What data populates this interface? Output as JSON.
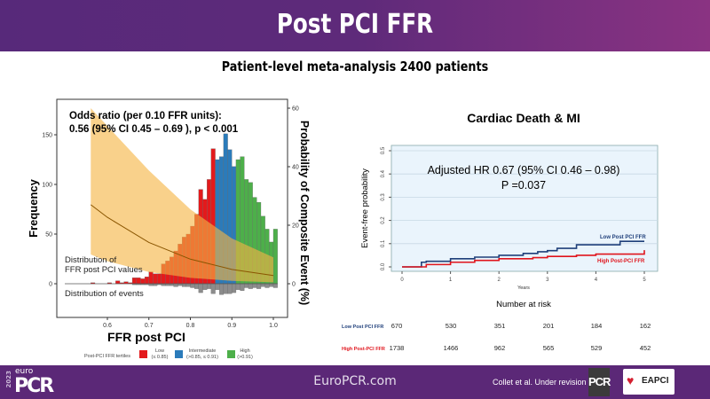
{
  "slide": {
    "title": "Post PCI FFR",
    "subtitle": "Patient-level meta-analysis 2400 patients"
  },
  "footer": {
    "logo_year": "2023",
    "logo_euro": "euro",
    "logo_pcr": "PCR",
    "site": "EuroPCR.com",
    "citation": "Collet et al. Under revision",
    "pcr_badge": "PCR",
    "eapci_badge": "EAPCI"
  },
  "colors": {
    "low": "#e31a1c",
    "intermediate": "#2b7bba",
    "high": "#4daf4a",
    "events": "#8c8c8c",
    "ci_band": "#f5b544",
    "curve": "#8a5500",
    "km_low": "#1f3f7a",
    "km_high": "#e0141c",
    "km_bg": "#eaf4fc",
    "header": "#5e2a7a"
  },
  "chart_data": [
    {
      "type": "bar",
      "xlabel": "FFR post PCI",
      "ylabel": "Frequency",
      "ylabel_right": "Probability of Composite Event (%)",
      "xlim": [
        0.5,
        1.02
      ],
      "ylim": [
        -20,
        175
      ],
      "ylim_right": [
        0,
        62
      ],
      "xticks": [
        "0.6",
        "0.7",
        "0.8",
        "0.9",
        "1.0"
      ],
      "yticks": [
        "0",
        "50",
        "100",
        "150"
      ],
      "yticks_right": [
        "0",
        "20",
        "40",
        "60"
      ],
      "annotation": [
        "Odds ratio (per 0.10 FFR units):",
        "0.56 (95% CI 0.45 – 0.69 ), p < 0.001"
      ],
      "label_values": [
        "Distribution of",
        "FFR post PCI values"
      ],
      "label_events": "Distribution of events",
      "legend": {
        "title": "Post-PCI FFR tertiles",
        "items": [
          {
            "name": "Low",
            "range": "(≤ 0.85)"
          },
          {
            "name": "Intermediate",
            "range": "(>0.85, ≤ 0.91)"
          },
          {
            "name": "High",
            "range": "(>0.91)"
          }
        ]
      },
      "bins": [
        0.56,
        0.57,
        0.58,
        0.59,
        0.6,
        0.61,
        0.62,
        0.63,
        0.64,
        0.65,
        0.66,
        0.67,
        0.68,
        0.69,
        0.7,
        0.71,
        0.72,
        0.73,
        0.74,
        0.75,
        0.76,
        0.77,
        0.78,
        0.79,
        0.8,
        0.81,
        0.82,
        0.83,
        0.84,
        0.85,
        0.86,
        0.87,
        0.88,
        0.89,
        0.9,
        0.91,
        0.92,
        0.93,
        0.94,
        0.95,
        0.96,
        0.97,
        0.98,
        0.99,
        1.0
      ],
      "frequency": [
        1,
        0,
        0,
        0,
        1,
        0,
        3,
        1,
        2,
        1,
        6,
        6,
        5,
        7,
        12,
        10,
        10,
        20,
        23,
        27,
        33,
        40,
        47,
        50,
        58,
        70,
        95,
        85,
        105,
        136,
        125,
        128,
        151,
        135,
        118,
        125,
        128,
        105,
        102,
        87,
        82,
        68,
        55,
        42,
        55
      ],
      "events": [
        0,
        0,
        0,
        0,
        0,
        0,
        0,
        0,
        0,
        0,
        1,
        1,
        1,
        1,
        2,
        2,
        1,
        2,
        2,
        2,
        3,
        2,
        3,
        3,
        4,
        5,
        9,
        6,
        5,
        10,
        6,
        11,
        10,
        10,
        9,
        6,
        7,
        4,
        5,
        4,
        5,
        3,
        4,
        3,
        4
      ],
      "tertile_cutoffs": [
        0.85,
        0.91
      ],
      "curve": {
        "x": [
          0.56,
          0.6,
          0.7,
          0.8,
          0.9,
          1.0
        ],
        "probability": [
          27,
          22.7,
          14.1,
          8.4,
          4.9,
          2.8
        ],
        "ci_lower": [
          10,
          7.7,
          4.0,
          2.0,
          1.0,
          0.5
        ],
        "ci_upper": [
          60,
          53.9,
          38.7,
          25.4,
          15.5,
          9.0
        ]
      }
    },
    {
      "type": "line",
      "title": "Cardiac Death & MI",
      "xlabel": "Years",
      "ylabel": "Event-free probability",
      "xlim": [
        0,
        5
      ],
      "ylim": [
        0,
        0.5
      ],
      "xticks": [
        "0",
        "1",
        "2",
        "3",
        "4",
        "5"
      ],
      "yticks": [
        "0.0",
        "0.1",
        "0.2",
        "0.3",
        "0.4",
        "0.5"
      ],
      "annotation": [
        "Adjusted HR 0.67 (95% CI 0.46 – 0.98)",
        "P =0.037"
      ],
      "series": [
        {
          "name": "Low Post PCI FFR",
          "x": [
            0,
            0.4,
            0.5,
            1,
            1.5,
            2,
            2.5,
            2.8,
            3,
            3.2,
            3.6,
            4.4,
            4.5,
            5
          ],
          "y": [
            0,
            0.02,
            0.024,
            0.035,
            0.042,
            0.05,
            0.058,
            0.065,
            0.07,
            0.08,
            0.095,
            0.095,
            0.11,
            0.11
          ]
        },
        {
          "name": "High Post-PCI FFR",
          "x": [
            0,
            0.5,
            1,
            1.5,
            2,
            2.7,
            3,
            3.6,
            4,
            5
          ],
          "y": [
            0,
            0.01,
            0.02,
            0.028,
            0.035,
            0.04,
            0.045,
            0.05,
            0.055,
            0.072
          ]
        }
      ],
      "risk_table": {
        "title": "Number at risk",
        "rows": [
          {
            "name": "Low Post PCI FFR",
            "values": [
              "670",
              "530",
              "351",
              "201",
              "184",
              "162"
            ]
          },
          {
            "name": "High Post-PCI FFR",
            "values": [
              "1738",
              "1466",
              "962",
              "565",
              "529",
              "452"
            ]
          }
        ]
      }
    }
  ]
}
